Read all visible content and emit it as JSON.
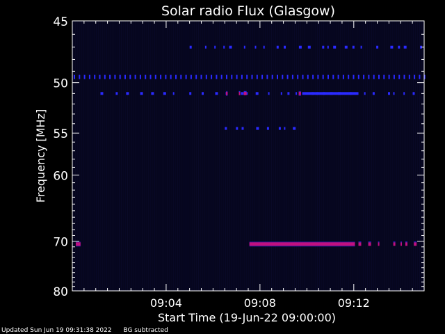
{
  "chart_data": {
    "type": "heatmap",
    "title": "Solar radio Flux (Glasgow)",
    "ylabel": "Frequency [MHz]",
    "xlabel": "Start Time (19-Jun-22 09:00:00)",
    "x_unit": "minutes",
    "xlim": [
      0,
      15
    ],
    "ylim": [
      80,
      45
    ],
    "y_scale": "reciprocal",
    "y_ticks": [
      45,
      50,
      55,
      60,
      70,
      80
    ],
    "x_tick_labels": [
      {
        "x": 4,
        "label": "09:04"
      },
      {
        "x": 8,
        "label": "09:08"
      },
      {
        "x": 12,
        "label": "09:12"
      }
    ],
    "x_minor_step": 0.5,
    "colors": {
      "background": "#06061e",
      "weak": "#2a2aff",
      "strong": "#c01080"
    },
    "emission": [
      {
        "freq": 49.5,
        "start": 0.0,
        "end": 15.0,
        "level": "weak",
        "pattern": "periodic"
      },
      {
        "freq": 51.0,
        "start": 1.2,
        "end": 14.8,
        "level": "weak",
        "pattern": "sparse"
      },
      {
        "freq": 51.0,
        "start": 9.8,
        "end": 12.2,
        "level": "weak",
        "pattern": "continuous"
      },
      {
        "freq": 51.0,
        "start": 6.55,
        "end": 6.62,
        "level": "strong",
        "pattern": "continuous"
      },
      {
        "freq": 51.0,
        "start": 7.1,
        "end": 7.5,
        "level": "strong",
        "pattern": "sparse"
      },
      {
        "freq": 51.0,
        "start": 9.65,
        "end": 9.75,
        "level": "strong",
        "pattern": "continuous"
      },
      {
        "freq": 47.0,
        "start": 5.0,
        "end": 15.0,
        "level": "weak",
        "pattern": "sparse"
      },
      {
        "freq": 54.5,
        "start": 6.5,
        "end": 9.9,
        "level": "weak",
        "pattern": "sparse"
      },
      {
        "freq": 70.5,
        "start": 0.15,
        "end": 0.35,
        "level": "strong",
        "pattern": "continuous"
      },
      {
        "freq": 70.5,
        "start": 7.55,
        "end": 12.05,
        "level": "strong",
        "pattern": "continuous"
      },
      {
        "freq": 70.5,
        "start": 12.2,
        "end": 15.0,
        "level": "strong",
        "pattern": "sparse"
      }
    ]
  },
  "footer": {
    "updated": "Updated Sun Jun 19 09:31:38 2022",
    "note": "BG subtracted"
  }
}
